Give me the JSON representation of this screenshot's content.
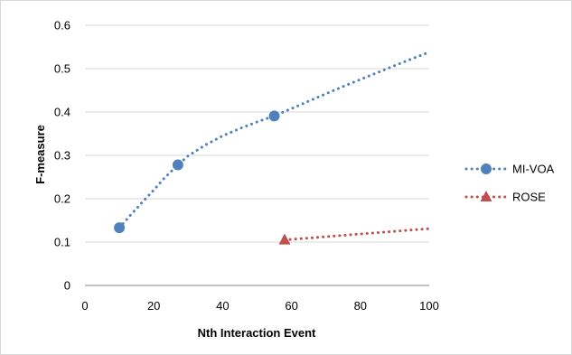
{
  "chart_data": {
    "type": "line",
    "title": "",
    "xlabel": "Nth Interaction Event",
    "ylabel": "F-measure",
    "xlim": [
      0,
      100
    ],
    "ylim": [
      0,
      0.6
    ],
    "xticks": [
      0,
      20,
      40,
      60,
      80,
      100
    ],
    "yticks": [
      0,
      0.1,
      0.2,
      0.3,
      0.4,
      0.5,
      0.6
    ],
    "xtick_labels": [
      "0",
      "20",
      "40",
      "60",
      "80",
      "100"
    ],
    "ytick_labels": [
      "0",
      "0.1",
      "0.2",
      "0.3",
      "0.4",
      "0.5",
      "0.6"
    ],
    "grid": "horizontal",
    "legend_position": "right",
    "series": [
      {
        "name": "MI-VOA",
        "color": "#4f81bd",
        "marker": "circle",
        "marker_x": [
          10,
          27,
          55
        ],
        "marker_y": [
          0.133,
          0.278,
          0.391
        ],
        "line_x": [
          10,
          13,
          17,
          20,
          23,
          27,
          30,
          35,
          40,
          45,
          50,
          55,
          60,
          65,
          70,
          75,
          80,
          85,
          90,
          95,
          100
        ],
        "line_y": [
          0.133,
          0.16,
          0.195,
          0.22,
          0.247,
          0.278,
          0.299,
          0.324,
          0.345,
          0.362,
          0.377,
          0.391,
          0.408,
          0.425,
          0.442,
          0.459,
          0.475,
          0.491,
          0.507,
          0.523,
          0.538
        ]
      },
      {
        "name": "ROSE",
        "color": "#c0504d",
        "marker": "triangle",
        "marker_x": [
          58
        ],
        "marker_y": [
          0.105
        ],
        "line_x": [
          58,
          100
        ],
        "line_y": [
          0.105,
          0.131
        ]
      }
    ]
  }
}
